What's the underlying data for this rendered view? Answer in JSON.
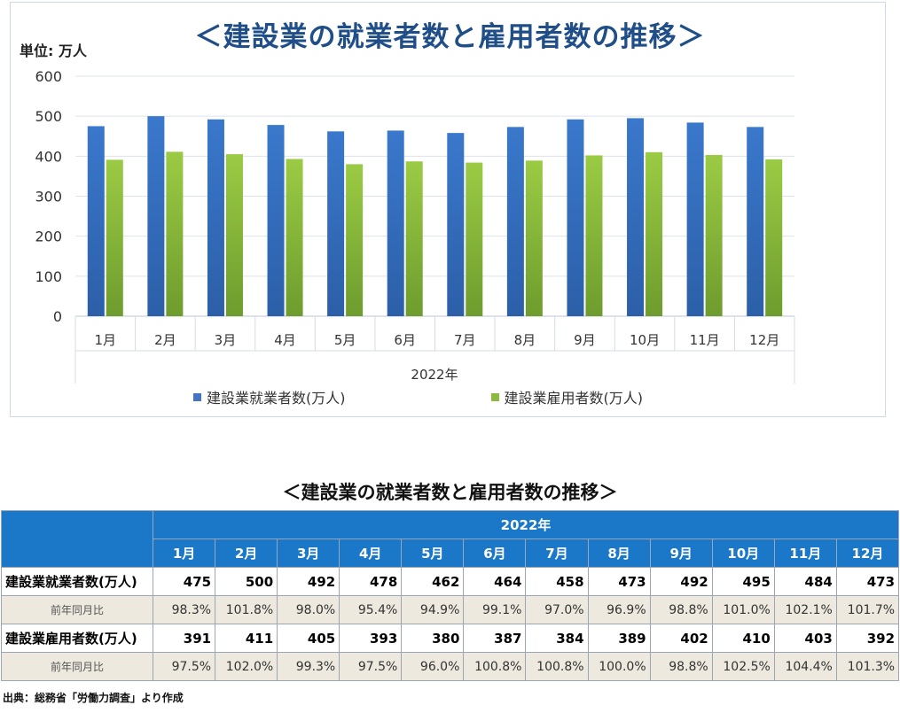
{
  "page": {
    "chart_title": "＜建設業の就業者数と雇用者数の推移＞",
    "unit_label": "単位: 万人",
    "table_title": "＜建設業の就業者数と雇用者数の推移＞",
    "source_note": "出典：総務省「労働力調査」より作成"
  },
  "colors": {
    "employed": "#4472c4",
    "employees": "#8dba3e",
    "header": "#1b78c9",
    "ratio_bg": "#ede9df"
  },
  "chart_data": {
    "type": "bar",
    "title": "＜建設業の就業者数と雇用者数の推移＞",
    "categories": [
      "1月",
      "2月",
      "3月",
      "4月",
      "5月",
      "6月",
      "7月",
      "8月",
      "9月",
      "10月",
      "11月",
      "12月"
    ],
    "xlabel": "2022年",
    "ylabel": "単位: 万人",
    "ylim": [
      0,
      600
    ],
    "yticks": [
      0,
      100,
      200,
      300,
      400,
      500,
      600
    ],
    "grid": true,
    "legend": "bottom",
    "series": [
      {
        "name": "建設業就業者数(万人)",
        "values": [
          475,
          500,
          492,
          478,
          462,
          464,
          458,
          473,
          492,
          495,
          484,
          473
        ]
      },
      {
        "name": "建設業雇用者数(万人)",
        "values": [
          391,
          411,
          405,
          393,
          380,
          387,
          384,
          389,
          402,
          410,
          403,
          392
        ]
      }
    ]
  },
  "table": {
    "year_header": "2022年",
    "months": [
      "1月",
      "2月",
      "3月",
      "4月",
      "5月",
      "6月",
      "7月",
      "8月",
      "9月",
      "10月",
      "11月",
      "12月"
    ],
    "rows": [
      {
        "label": "建設業就業者数(万人)",
        "values": [
          "475",
          "500",
          "492",
          "478",
          "462",
          "464",
          "458",
          "473",
          "492",
          "495",
          "484",
          "473"
        ]
      },
      {
        "label": "前年同月比",
        "values": [
          "98.3%",
          "101.8%",
          "98.0%",
          "95.4%",
          "94.9%",
          "99.1%",
          "97.0%",
          "96.9%",
          "98.8%",
          "101.0%",
          "102.1%",
          "101.7%"
        ]
      },
      {
        "label": "建設業雇用者数(万人)",
        "values": [
          "391",
          "411",
          "405",
          "393",
          "380",
          "387",
          "384",
          "389",
          "402",
          "410",
          "403",
          "392"
        ]
      },
      {
        "label": "前年同月比",
        "values": [
          "97.5%",
          "102.0%",
          "99.3%",
          "97.5%",
          "96.0%",
          "100.8%",
          "100.8%",
          "100.0%",
          "98.8%",
          "102.5%",
          "104.4%",
          "101.3%"
        ]
      }
    ]
  }
}
